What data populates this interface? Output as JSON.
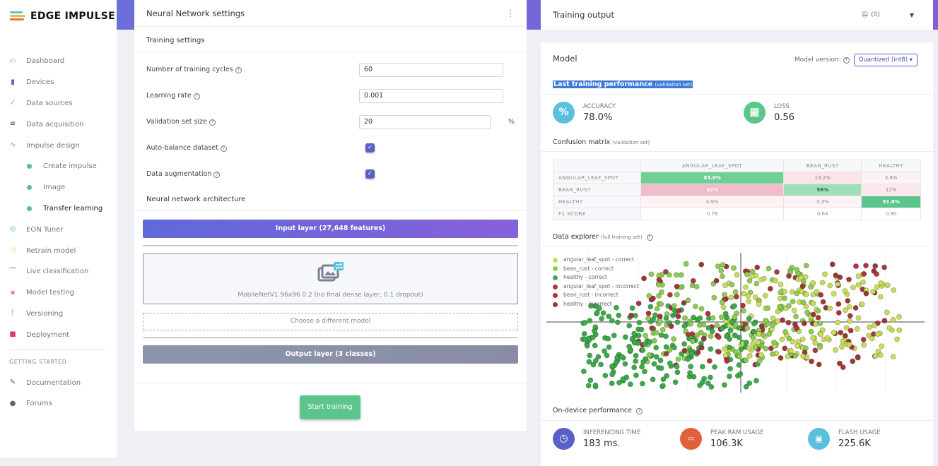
{
  "brand": {
    "name": "EDGE IMPULSE"
  },
  "sidebar": {
    "items": [
      {
        "label": "Dashboard",
        "icon": "monitor-icon",
        "color": "#5bc0de"
      },
      {
        "label": "Devices",
        "icon": "chip-icon",
        "color": "#5b60c9"
      },
      {
        "label": "Data sources",
        "icon": "wand-icon",
        "color": "#d9534f"
      },
      {
        "label": "Data acquisition",
        "icon": "database-icon",
        "color": "#4b2a8a"
      },
      {
        "label": "Impulse design",
        "icon": "pulse-icon",
        "color": "#e8704a"
      }
    ],
    "sub_items": [
      {
        "label": "Create impulse"
      },
      {
        "label": "Image"
      },
      {
        "label": "Transfer learning"
      }
    ],
    "items2": [
      {
        "label": "EON Tuner",
        "icon": "compass-icon",
        "color": "#5cc08a"
      },
      {
        "label": "Retrain model",
        "icon": "shuffle-icon",
        "color": "#f0c030"
      },
      {
        "label": "Live classification",
        "icon": "live-icon",
        "color": "#3aa870"
      },
      {
        "label": "Model testing",
        "icon": "clipboard-icon",
        "color": "#e88aa0"
      },
      {
        "label": "Versioning",
        "icon": "branch-icon",
        "color": "#5b60c9"
      },
      {
        "label": "Deployment",
        "icon": "box-icon",
        "color": "#d94060"
      }
    ],
    "getting_started": "GETTING STARTED",
    "gs_items": [
      {
        "label": "Documentation",
        "icon": "book-icon"
      },
      {
        "label": "Forums",
        "icon": "chat-icon"
      }
    ]
  },
  "nn": {
    "title": "Neural Network settings",
    "menu": "⋮",
    "training_settings": "Training settings",
    "fields": {
      "cycles_label": "Number of training cycles",
      "cycles": "60",
      "lr_label": "Learning rate",
      "lr": "0.001",
      "val_label": "Validation set size",
      "val": "20",
      "val_unit": "%",
      "balance_label": "Auto-balance dataset",
      "aug_label": "Data augmentation"
    },
    "balance_checked": true,
    "aug_checked": true,
    "arch_title": "Neural network architecture",
    "input_layer": "Input layer (27,648 features)",
    "model": "MobileNetV1 96x96 0.2 (no final dense layer, 0.1 dropout)",
    "choose": "Choose a different model",
    "output_layer": "Output layer (3 classes)",
    "start": "Start training"
  },
  "output": {
    "title": "Training output",
    "notif": "(0)"
  },
  "model": {
    "title": "Model",
    "version_label": "Model version:",
    "version": "Quantized (int8)",
    "ltp": "Last training performance",
    "ltp_sub": "(validation set)",
    "accuracy_label": "ACCURACY",
    "accuracy": "78.0%",
    "loss_label": "LOSS",
    "loss": "0.56",
    "cm_title": "Confusion matrix",
    "cm_sub": "(validation set)",
    "cm": {
      "cols": [
        "ANGULAR_LEAF_SPOT",
        "BEAN_RUST",
        "HEALTHY"
      ],
      "rows": [
        {
          "label": "ANGULAR_LEAF_SPOT",
          "cells": [
            "83.0%",
            "13.2%",
            "3.8%"
          ]
        },
        {
          "label": "BEAN_RUST",
          "cells": [
            "32%",
            "56%",
            "12%"
          ]
        },
        {
          "label": "HEALTHY",
          "cells": [
            "4.9%",
            "3.3%",
            "91.8%"
          ]
        },
        {
          "label": "F1 SCORE",
          "cells": [
            "0.76",
            "0.64",
            "0.90"
          ]
        }
      ]
    },
    "de_title": "Data explorer",
    "de_sub": "(full training set)",
    "legend": [
      {
        "label": "angular_leaf_spot - correct",
        "color": "#c8dc5a"
      },
      {
        "label": "bean_rust - correct",
        "color": "#8ccc50"
      },
      {
        "label": "healthy - correct",
        "color": "#3caa4a"
      },
      {
        "label": "angular_leaf_spot - incorrect",
        "color": "#a83a3a"
      },
      {
        "label": "bean_rust - incorrect",
        "color": "#b03040"
      },
      {
        "label": "healthy - incorrect",
        "color": "#983a30"
      }
    ],
    "odp_title": "On-device performance",
    "inf_label": "INFERENCING TIME",
    "inf": "183 ms.",
    "ram_label": "PEAK RAM USAGE",
    "ram": "106.3K",
    "flash_label": "FLASH USAGE",
    "flash": "225.6K"
  }
}
